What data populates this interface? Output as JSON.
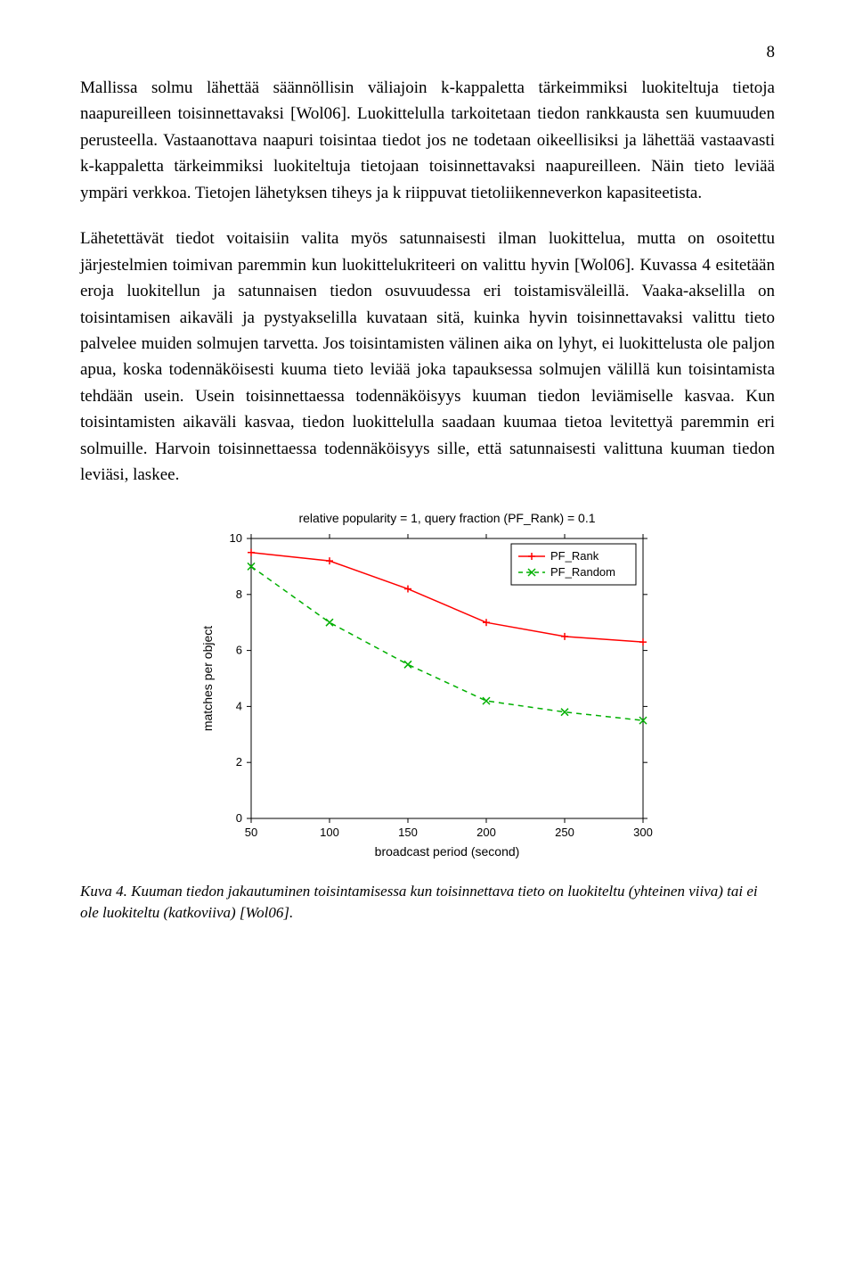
{
  "page_number": "8",
  "paragraphs": {
    "p1": "Mallissa solmu lähettää säännöllisin väliajoin k-kappaletta tärkeimmiksi luokiteltuja tietoja naapureilleen toisinnettavaksi [Wol06]. Luokittelulla tarkoitetaan tiedon rankkausta sen kuumuuden perusteella. Vastaanottava naapuri toisintaa tiedot jos ne todetaan oikeellisiksi ja lähettää vastaavasti k-kappaletta tärkeimmiksi luokiteltuja tietojaan toisinnettavaksi naapureilleen. Näin tieto leviää ympäri verkkoa. Tietojen lähetyksen tiheys ja k riippuvat tietoliikenneverkon kapasiteetista.",
    "p2": "Lähetettävät tiedot voitaisiin valita myös satunnaisesti ilman luokittelua, mutta on osoitettu järjestelmien toimivan paremmin kun luokittelukriteeri on valittu hyvin [Wol06]. Kuvassa 4 esitetään eroja luokitellun ja satunnaisen tiedon osuvuudessa eri toistamisväleillä. Vaaka-akselilla on toisintamisen aikaväli ja pystyakselilla kuvataan sitä, kuinka hyvin toisinnettavaksi valittu tieto palvelee muiden solmujen tarvetta. Jos toisintamisten välinen aika on lyhyt, ei luokittelusta ole paljon apua, koska todennäköisesti kuuma tieto leviää joka tapauksessa solmujen välillä kun toisintamista tehdään usein. Usein toisinnettaessa todennäköisyys kuuman tiedon leviämiselle kasvaa. Kun toisintamisten aikaväli kasvaa, tiedon luokittelulla saadaan kuumaa tietoa levitettyä paremmin eri solmuille. Harvoin toisinnettaessa todennäköisyys sille, että satunnaisesti valittuna kuuman tiedon leviäsi, laskee."
  },
  "caption": "Kuva 4. Kuuman tiedon jakautuminen toisintamisessa kun toisinnettava tieto on luokiteltu (yhteinen viiva) tai ei ole luokiteltu (katkoviiva) [Wol06].",
  "chart": {
    "type": "line",
    "title": "relative popularity = 1, query fraction (PF_Rank) = 0.1",
    "title_fontsize": 14,
    "title_color": "#000000",
    "xlabel": "broadcast period (second)",
    "ylabel": "matches per object",
    "label_fontsize": 14,
    "label_color": "#000000",
    "tick_fontsize": 13,
    "tick_color": "#000000",
    "background_color": "#ffffff",
    "plot_bg": "#ffffff",
    "border_color": "#000000",
    "grid_color": "#cccccc",
    "xlim": [
      50,
      300
    ],
    "ylim": [
      0,
      10
    ],
    "xticks": [
      50,
      100,
      150,
      200,
      250,
      300
    ],
    "yticks": [
      0,
      2,
      4,
      6,
      8,
      10
    ],
    "legend": {
      "position": "top-right-inside",
      "items": [
        {
          "label": "PF_Rank",
          "color": "#ff0000",
          "marker": "plus",
          "dash": "solid"
        },
        {
          "label": "PF_Random",
          "color": "#00b000",
          "marker": "x",
          "dash": "dash"
        }
      ],
      "border_color": "#000000",
      "bg": "#ffffff",
      "fontsize": 13
    },
    "series": [
      {
        "name": "PF_Rank",
        "color": "#ff0000",
        "marker": "plus",
        "marker_size": 8,
        "line_width": 1.5,
        "dash": "solid",
        "x": [
          50,
          100,
          150,
          200,
          250,
          300
        ],
        "y": [
          9.5,
          9.2,
          8.2,
          7.0,
          6.5,
          6.3
        ]
      },
      {
        "name": "PF_Random",
        "color": "#00b000",
        "marker": "x",
        "marker_size": 8,
        "line_width": 1.5,
        "dash": "dash",
        "x": [
          50,
          100,
          150,
          200,
          250,
          300
        ],
        "y": [
          9.0,
          7.0,
          5.5,
          4.2,
          3.8,
          3.5
        ]
      }
    ]
  }
}
